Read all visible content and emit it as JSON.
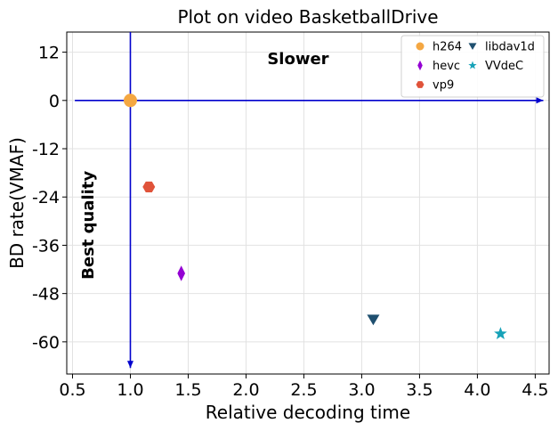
{
  "chart_data": {
    "type": "scatter",
    "title": "Plot on video BasketballDrive",
    "xlabel": "Relative decoding time",
    "ylabel": "BD rate(VMAF)",
    "xlim": [
      0.45,
      4.62
    ],
    "ylim": [
      -68,
      17
    ],
    "xticks": [
      0.5,
      1.0,
      1.5,
      2.0,
      2.5,
      3.0,
      3.5,
      4.0,
      4.5
    ],
    "xtick_labels": [
      "0.5",
      "1.0",
      "1.5",
      "2.0",
      "2.5",
      "3.0",
      "3.5",
      "4.0",
      "4.5"
    ],
    "yticks": [
      12,
      0,
      -12,
      -24,
      -36,
      -48,
      -60
    ],
    "ytick_labels": [
      "12",
      "0",
      "-12",
      "-24",
      "-36",
      "-48",
      "-60"
    ],
    "grid": true,
    "legend_position": "top-right",
    "series": [
      {
        "name": "h264",
        "marker": "circle",
        "color": "#f4a742",
        "x": 1.0,
        "y": 0
      },
      {
        "name": "hevc",
        "marker": "diamond",
        "color": "#9400d3",
        "x": 1.44,
        "y": -43
      },
      {
        "name": "vp9",
        "marker": "hexagon",
        "color": "#e0533a",
        "x": 1.16,
        "y": -21.5
      },
      {
        "name": "libdav1d",
        "marker": "triangle-down",
        "color": "#1f4f6f",
        "x": 3.1,
        "y": -54.5
      },
      {
        "name": "VVdeC",
        "marker": "star",
        "color": "#17a2b8",
        "x": 4.2,
        "y": -58
      }
    ],
    "annotations": [
      {
        "text": "Slower",
        "x": 2.45,
        "y": 9
      },
      {
        "text": "Best quality",
        "x": 0.68,
        "y": -31,
        "rotation": -90
      }
    ],
    "arrows": [
      {
        "from": [
          0.52,
          0
        ],
        "to": [
          4.57,
          0
        ],
        "color": "#0000cd"
      },
      {
        "from": [
          1.0,
          17
        ],
        "to": [
          1.0,
          -66.5
        ],
        "color": "#0000cd"
      }
    ]
  }
}
